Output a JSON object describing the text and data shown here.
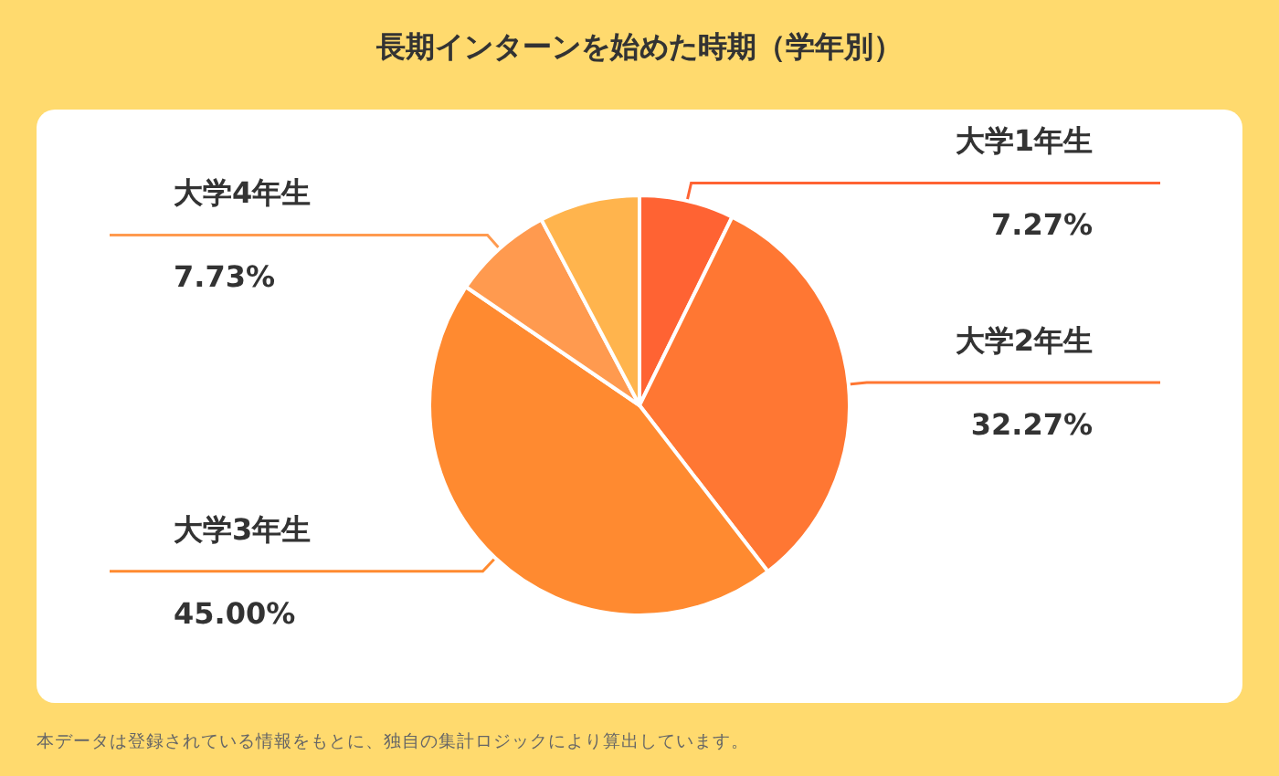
{
  "chart_data": {
    "type": "pie",
    "title": "長期インターンを始めた時期（学年別）",
    "categories": [
      "大学1年生",
      "大学2年生",
      "大学3年生",
      "大学4年生",
      null
    ],
    "values": [
      7.27,
      32.27,
      45.0,
      7.73,
      7.73
    ],
    "value_labels": [
      "7.27%",
      "32.27%",
      "45.00%",
      "7.73%",
      null
    ],
    "colors": [
      "#ff6333",
      "#ff7733",
      "#ff8a30",
      "#ff9a4f",
      "#ffb44d"
    ],
    "annotations": [
      "本データは登録されている情報をもとに、独自の集計ロジックにより算出しています。"
    ],
    "legend": false
  }
}
